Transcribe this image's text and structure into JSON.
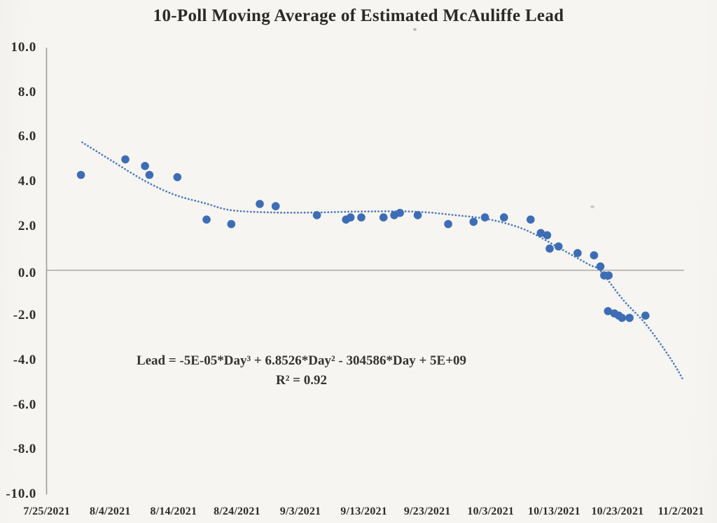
{
  "chart_data": {
    "type": "scatter",
    "title": "10-Poll Moving Average of Estimated McAuliffe Lead",
    "xlabel": "",
    "ylabel": "",
    "legend": "none",
    "grid": "zero-line-only",
    "ylim": [
      -10,
      10
    ],
    "y_axis": {
      "tick_labels": [
        "10.0",
        "8.0",
        "6.0",
        "4.0",
        "2.0",
        "0.0",
        "-2.0",
        "-4.0",
        "-6.0",
        "-8.0",
        "-10.0"
      ],
      "tick_values": [
        10,
        8,
        6,
        4,
        2,
        0,
        -2,
        -4,
        -6,
        -8,
        -10
      ]
    },
    "x_axis": {
      "tick_labels": [
        "7/25/2021",
        "8/4/2021",
        "8/14/2021",
        "8/24/2021",
        "9/3/2021",
        "9/13/2021",
        "9/23/2021",
        "10/3/2021",
        "10/13/2021",
        "10/23/2021",
        "11/2/2021"
      ],
      "tick_interval_days": 10,
      "range_days": [
        0,
        100
      ]
    },
    "series": [
      {
        "name": "10-poll moving average of estimated McAuliffe lead",
        "points": [
          {
            "day": 5.4,
            "date": "7/30/2021",
            "value": 4.3
          },
          {
            "day": 12.4,
            "date": "8/6/2021",
            "value": 5.0
          },
          {
            "day": 15.5,
            "date": "8/9/2021",
            "value": 4.7
          },
          {
            "day": 16.2,
            "date": "8/10/2021",
            "value": 4.3
          },
          {
            "day": 20.6,
            "date": "8/14/2021",
            "value": 4.2
          },
          {
            "day": 25.2,
            "date": "8/19/2021",
            "value": 2.3
          },
          {
            "day": 29.1,
            "date": "8/23/2021",
            "value": 2.1
          },
          {
            "day": 33.6,
            "date": "8/27/2021",
            "value": 3.0
          },
          {
            "day": 36.1,
            "date": "8/30/2021",
            "value": 2.9
          },
          {
            "day": 42.6,
            "date": "9/6/2021",
            "value": 2.5
          },
          {
            "day": 47.2,
            "date": "9/10/2021",
            "value": 2.3
          },
          {
            "day": 47.9,
            "date": "9/11/2021",
            "value": 2.4
          },
          {
            "day": 49.6,
            "date": "9/13/2021",
            "value": 2.4
          },
          {
            "day": 53.1,
            "date": "9/16/2021",
            "value": 2.4
          },
          {
            "day": 54.8,
            "date": "9/18/2021",
            "value": 2.5
          },
          {
            "day": 55.7,
            "date": "9/19/2021",
            "value": 2.6
          },
          {
            "day": 58.5,
            "date": "9/21/2021",
            "value": 2.5
          },
          {
            "day": 63.3,
            "date": "9/26/2021",
            "value": 2.1
          },
          {
            "day": 67.3,
            "date": "9/30/2021",
            "value": 2.2
          },
          {
            "day": 69.1,
            "date": "10/2/2021",
            "value": 2.4
          },
          {
            "day": 72.1,
            "date": "10/5/2021",
            "value": 2.4
          },
          {
            "day": 76.3,
            "date": "10/9/2021",
            "value": 2.3
          },
          {
            "day": 77.9,
            "date": "10/11/2021",
            "value": 1.7
          },
          {
            "day": 78.9,
            "date": "10/12/2021",
            "value": 1.6
          },
          {
            "day": 79.3,
            "date": "10/12/2021",
            "value": 1.0
          },
          {
            "day": 80.7,
            "date": "10/14/2021",
            "value": 1.1
          },
          {
            "day": 83.7,
            "date": "10/17/2021",
            "value": 0.8
          },
          {
            "day": 86.3,
            "date": "10/19/2021",
            "value": 0.7
          },
          {
            "day": 87.3,
            "date": "10/20/2021",
            "value": 0.2
          },
          {
            "day": 87.9,
            "date": "10/21/2021",
            "value": -0.2
          },
          {
            "day": 88.6,
            "date": "10/21/2021",
            "value": -0.2
          },
          {
            "day": 88.5,
            "date": "10/21/2021",
            "value": -1.8
          },
          {
            "day": 89.5,
            "date": "10/22/2021",
            "value": -1.9
          },
          {
            "day": 90.2,
            "date": "10/23/2021",
            "value": -2.0
          },
          {
            "day": 90.7,
            "date": "10/23/2021",
            "value": -2.1
          },
          {
            "day": 91.9,
            "date": "10/24/2021",
            "value": -2.1
          },
          {
            "day": 94.4,
            "date": "10/27/2021",
            "value": -2.0
          }
        ]
      }
    ],
    "trendline": {
      "type": "polynomial-cubic",
      "equation": "Lead = -5E-05*Day³ + 6.8526*Day² - 304586*Day + 5E+09",
      "r_squared": "R² = 0.92",
      "samples": [
        [
          5.6,
          5.76
        ],
        [
          10.4,
          4.91
        ],
        [
          15.5,
          4.03
        ],
        [
          20.2,
          3.41
        ],
        [
          25.0,
          3.03
        ],
        [
          29.1,
          2.72
        ],
        [
          35.7,
          2.62
        ],
        [
          42.3,
          2.62
        ],
        [
          48.9,
          2.66
        ],
        [
          57.8,
          2.66
        ],
        [
          64.4,
          2.5
        ],
        [
          69.9,
          2.3
        ],
        [
          75.4,
          1.85
        ],
        [
          81.0,
          1.0
        ],
        [
          85.4,
          0.3
        ],
        [
          87.3,
          0.0
        ],
        [
          90.9,
          -1.3
        ],
        [
          94.5,
          -2.4
        ],
        [
          98.3,
          -3.9
        ],
        [
          100.4,
          -4.9
        ]
      ]
    },
    "colors": {
      "point": "#3d6db5",
      "trend": "#4b77ba",
      "axis_line": "#9e9d9a",
      "zero_line": "#aaa9a6",
      "text": "#2d2c2a"
    }
  }
}
